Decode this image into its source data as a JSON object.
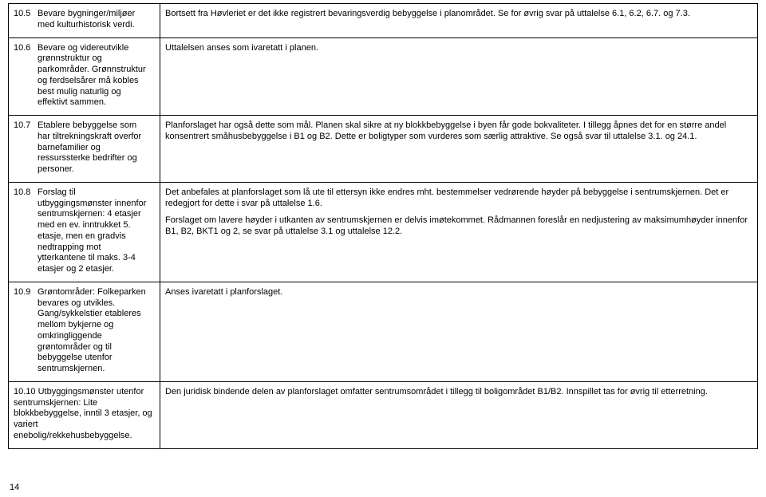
{
  "page_number": "14",
  "rows": [
    {
      "num": "10.5",
      "left": "Bevare bygninger/miljøer med kulturhistorisk verdi.",
      "right": [
        "Bortsett fra Høvleriet er det ikke registrert bevaringsverdig bebyggelse i planområdet. Se for øvrig svar på uttalelse 6.1, 6.2, 6.7. og 7.3."
      ]
    },
    {
      "num": "10.6",
      "left": "Bevare og videreutvikle grønnstruktur og parkområder. Grønnstruktur og ferdselsårer må kobles best mulig naturlig og effektivt sammen.",
      "right": [
        "Uttalelsen anses som ivaretatt i planen."
      ]
    },
    {
      "num": "10.7",
      "left": "Etablere bebyggelse som har tiltrekningskraft overfor barnefamilier og ressurssterke bedrifter og personer.",
      "right": [
        "Planforslaget har også dette som mål. Planen skal sikre at ny blokkbebyggelse i byen får gode bokvaliteter. I tillegg åpnes det for en større andel konsentrert småhusbebyggelse i B1 og B2. Dette er boligtyper som vurderes som særlig attraktive. Se også svar til uttalelse 3.1. og 24.1."
      ]
    },
    {
      "num": "10.8",
      "left": "Forslag til utbyggingsmønster innenfor sentrumskjernen: 4 etasjer med en ev. inntrukket 5. etasje, men en gradvis nedtrapping mot ytterkantene til maks. 3-4 etasjer og 2 etasjer.",
      "right": [
        "Det anbefales at planforslaget som lå ute til ettersyn ikke endres mht. bestemmelser vedrørende høyder på bebyggelse i sentrumskjernen.  Det er redegjort for dette i svar på uttalelse 1.6.",
        "Forslaget om lavere høyder i utkanten av sentrumskjernen er delvis imøtekommet. Rådmannen foreslår en nedjustering av maksimumhøyder innenfor B1, B2, BKT1 og 2, se svar på uttalelse 3.1 og uttalelse 12.2."
      ]
    },
    {
      "num": "10.9",
      "left": "Grøntområder: Folkeparken bevares og utvikles. Gang/sykkelstier etableres mellom bykjerne og omkringliggende grøntområder og til bebyggelse  utenfor sentrumskjernen.",
      "right": [
        "Anses ivaretatt i planforslaget."
      ]
    },
    {
      "num": "10.10",
      "left": "Utbyggingsmønster utenfor sentrumskjernen: Lite blokkbebyggelse, inntil 3 etasjer, og variert enebolig/rekkehusbebyggelse.",
      "right": [
        "Den juridisk bindende delen av planforslaget omfatter sentrumsområdet i tillegg til boligområdet B1/B2. Innspillet tas for øvrig til etterretning."
      ],
      "wide_num": true
    }
  ]
}
